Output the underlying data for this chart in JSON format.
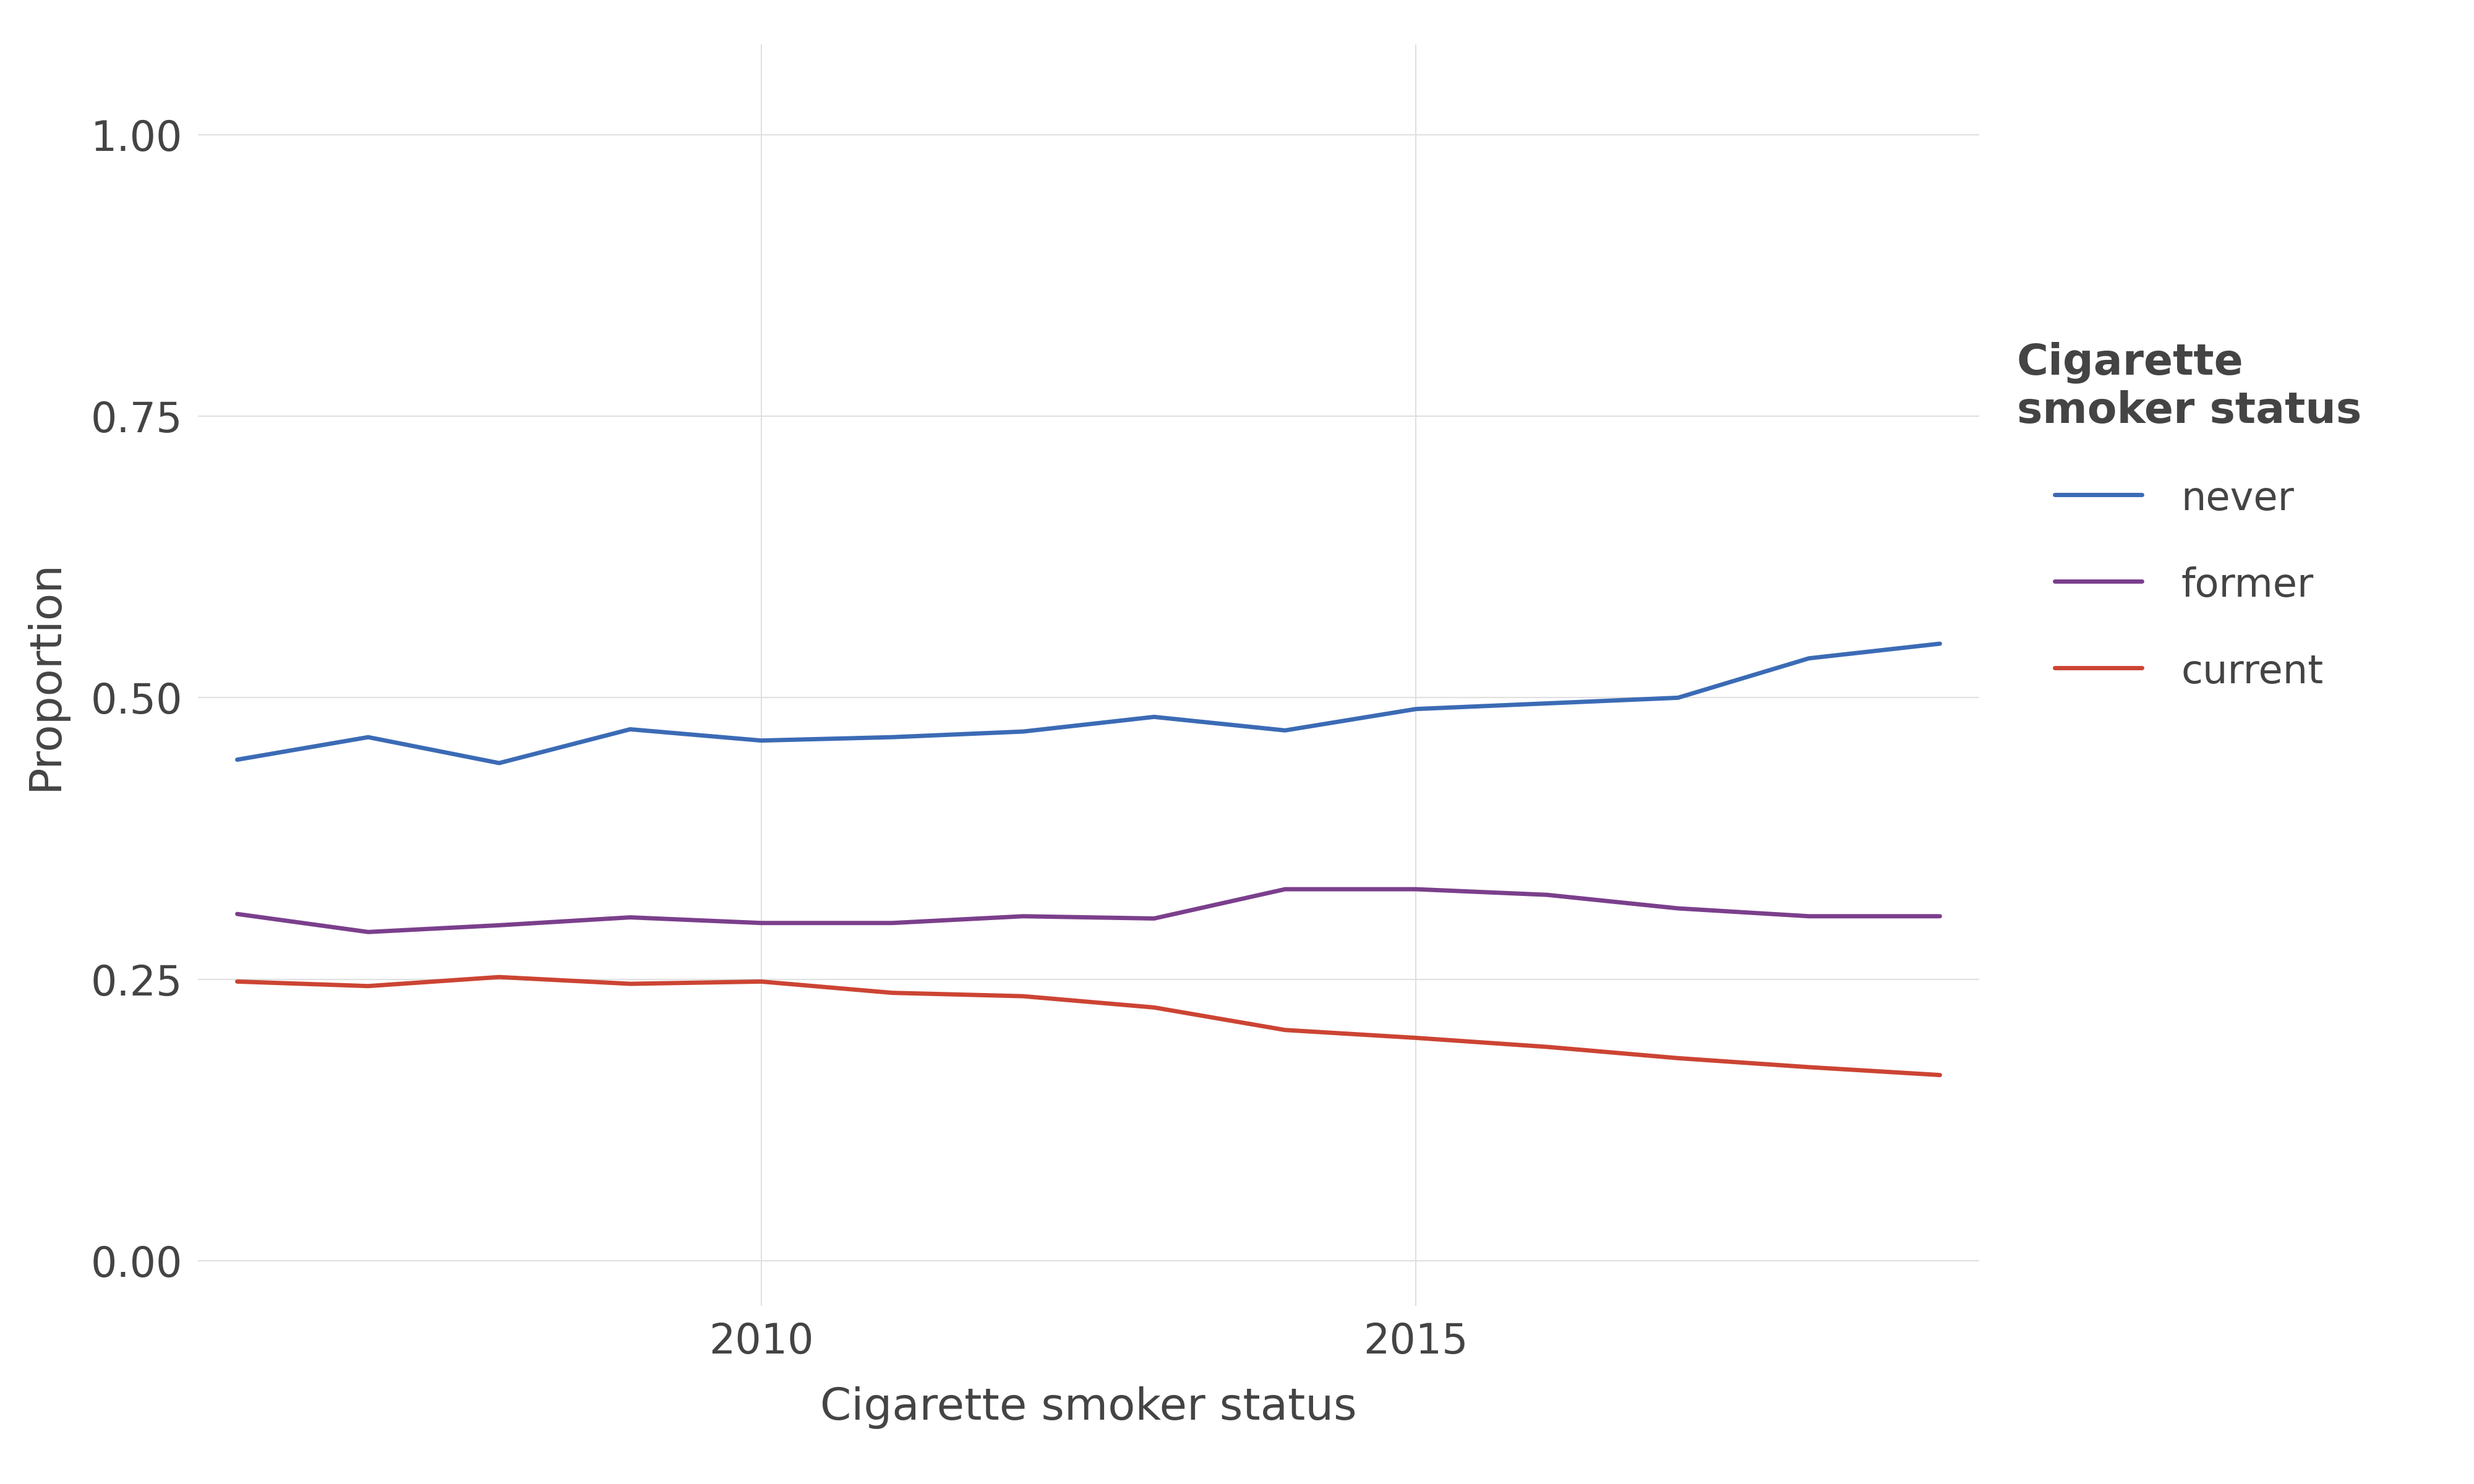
{
  "years": [
    2006,
    2007,
    2008,
    2009,
    2010,
    2011,
    2012,
    2013,
    2014,
    2015,
    2016,
    2017,
    2018,
    2019
  ],
  "never": [
    0.445,
    0.465,
    0.442,
    0.472,
    0.462,
    0.465,
    0.47,
    0.483,
    0.471,
    0.49,
    0.495,
    0.5,
    0.535,
    0.548
  ],
  "former": [
    0.308,
    0.292,
    0.298,
    0.305,
    0.3,
    0.3,
    0.306,
    0.304,
    0.33,
    0.33,
    0.325,
    0.313,
    0.306,
    0.306
  ],
  "current": [
    0.248,
    0.244,
    0.252,
    0.246,
    0.248,
    0.238,
    0.235,
    0.225,
    0.205,
    0.198,
    0.19,
    0.18,
    0.172,
    0.165
  ],
  "never_color": "#3B6BB5",
  "former_color": "#7B3F8C",
  "current_color": "#CC4433",
  "line_width": 5.0,
  "background_color": "#ffffff",
  "grid_color": "#e0e0e0",
  "xlabel": "Cigarette smoker status",
  "ylabel": "Proportion",
  "legend_title": "Cigarette\nsmoker status",
  "ylim": [
    -0.04,
    1.08
  ],
  "yticks": [
    0.0,
    0.25,
    0.5,
    0.75,
    1.0
  ],
  "xticks": [
    2010,
    2015
  ],
  "text_color": "#444444",
  "label_fontsize": 52,
  "tick_fontsize": 48,
  "legend_fontsize": 46,
  "legend_title_fontsize": 50
}
